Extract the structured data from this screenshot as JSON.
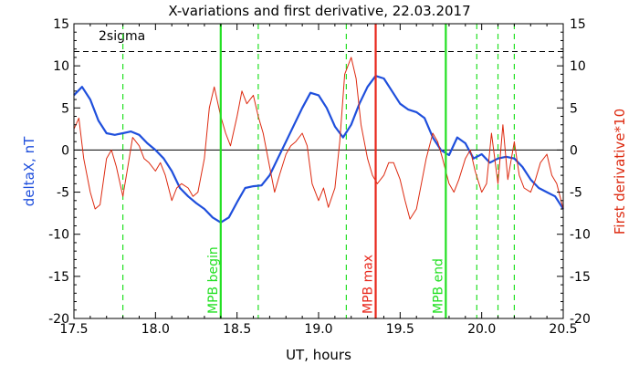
{
  "chart_data": {
    "type": "line",
    "title": "X-variations and first derivative, 22.03.2017",
    "xlabel": "UT, hours",
    "ylabel_left": "deltaX, nT",
    "ylabel_right": "First derivative*10",
    "xlim": [
      17.5,
      20.5
    ],
    "ylim": [
      -20,
      15
    ],
    "x_ticks": [
      "17.5",
      "18.0",
      "18.5",
      "19.0",
      "19.5",
      "20.0",
      "20.5"
    ],
    "x_tick_values": [
      17.5,
      18.0,
      18.5,
      19.0,
      19.5,
      20.0,
      20.5
    ],
    "y_ticks": [
      "-20",
      "-15",
      "-10",
      "-5",
      "0",
      "5",
      "10",
      "15"
    ],
    "y_tick_values": [
      -20,
      -15,
      -10,
      -5,
      0,
      5,
      10,
      15
    ],
    "colors": {
      "deltaX": "#1f4fdc",
      "derivative": "#dd2a10",
      "marker_green": "#22e022",
      "marker_red": "#e8281c",
      "axis": "#000000"
    },
    "sigma": {
      "label": "2sigma",
      "value": 11.7
    },
    "zero_line": 0,
    "markers": [
      {
        "x": 18.4,
        "label": "MPB begin",
        "color": "#22e022",
        "style": "solid"
      },
      {
        "x": 19.35,
        "label": "MPB max",
        "color": "#e8281c",
        "style": "solid"
      },
      {
        "x": 19.78,
        "label": "MPB end",
        "color": "#22e022",
        "style": "solid"
      }
    ],
    "dashed_markers": [
      17.8,
      18.63,
      19.17,
      19.97,
      20.1,
      20.2
    ],
    "series": [
      {
        "key": "deltaX",
        "name": "deltaX, nT",
        "x": [
          17.5,
          17.55,
          17.6,
          17.65,
          17.7,
          17.75,
          17.8,
          17.85,
          17.9,
          17.95,
          18.0,
          18.05,
          18.1,
          18.15,
          18.2,
          18.25,
          18.3,
          18.35,
          18.4,
          18.45,
          18.5,
          18.55,
          18.6,
          18.65,
          18.7,
          18.75,
          18.8,
          18.85,
          18.9,
          18.95,
          19.0,
          19.05,
          19.1,
          19.15,
          19.2,
          19.25,
          19.3,
          19.35,
          19.4,
          19.45,
          19.5,
          19.55,
          19.6,
          19.65,
          19.7,
          19.75,
          19.8,
          19.85,
          19.9,
          19.95,
          20.0,
          20.05,
          20.1,
          20.15,
          20.2,
          20.25,
          20.3,
          20.35,
          20.4,
          20.45,
          20.5
        ],
        "y": [
          6.5,
          7.5,
          6.0,
          3.5,
          2.0,
          1.8,
          2.0,
          2.2,
          1.8,
          0.8,
          0.0,
          -1.0,
          -2.5,
          -4.5,
          -5.5,
          -6.3,
          -7.0,
          -8.0,
          -8.6,
          -8.0,
          -6.2,
          -4.5,
          -4.3,
          -4.2,
          -3.0,
          -1.0,
          1.0,
          3.0,
          5.0,
          6.8,
          6.5,
          5.0,
          2.8,
          1.5,
          3.0,
          5.5,
          7.5,
          8.8,
          8.5,
          7.0,
          5.5,
          4.8,
          4.5,
          3.8,
          1.5,
          0.0,
          -0.6,
          1.5,
          0.8,
          -1.0,
          -0.5,
          -1.5,
          -1.0,
          -0.8,
          -1.0,
          -2.0,
          -3.5,
          -4.5,
          -5.0,
          -5.5,
          -7.0
        ]
      },
      {
        "key": "derivative",
        "name": "First derivative*10",
        "x": [
          17.5,
          17.53,
          17.56,
          17.6,
          17.63,
          17.66,
          17.7,
          17.73,
          17.76,
          17.8,
          17.83,
          17.86,
          17.9,
          17.93,
          17.96,
          18.0,
          18.03,
          18.06,
          18.1,
          18.13,
          18.16,
          18.2,
          18.23,
          18.26,
          18.3,
          18.33,
          18.36,
          18.4,
          18.43,
          18.46,
          18.5,
          18.53,
          18.56,
          18.6,
          18.63,
          18.66,
          18.7,
          18.73,
          18.76,
          18.8,
          18.83,
          18.86,
          18.9,
          18.93,
          18.96,
          19.0,
          19.03,
          19.06,
          19.1,
          19.13,
          19.16,
          19.2,
          19.23,
          19.26,
          19.3,
          19.33,
          19.36,
          19.4,
          19.43,
          19.46,
          19.5,
          19.53,
          19.56,
          19.6,
          19.63,
          19.66,
          19.7,
          19.73,
          19.76,
          19.8,
          19.83,
          19.86,
          19.9,
          19.93,
          19.96,
          20.0,
          20.03,
          20.06,
          20.1,
          20.13,
          20.16,
          20.2,
          20.23,
          20.26,
          20.3,
          20.33,
          20.36,
          20.4,
          20.43,
          20.46,
          20.5
        ],
        "y": [
          2.5,
          3.8,
          -1.0,
          -5.0,
          -7.0,
          -6.5,
          -1.0,
          0.0,
          -2.0,
          -5.5,
          -2.0,
          1.5,
          0.5,
          -1.0,
          -1.5,
          -2.5,
          -1.5,
          -3.0,
          -6.0,
          -4.5,
          -4.0,
          -4.5,
          -5.5,
          -5.0,
          -1.0,
          5.0,
          7.5,
          4.0,
          2.0,
          0.5,
          4.0,
          7.0,
          5.5,
          6.5,
          4.0,
          2.0,
          -2.0,
          -5.0,
          -3.0,
          -0.5,
          0.5,
          1.0,
          2.0,
          0.5,
          -4.0,
          -6.0,
          -4.5,
          -6.8,
          -4.5,
          1.0,
          9.0,
          11.0,
          8.5,
          3.0,
          -1.0,
          -3.0,
          -4.0,
          -3.0,
          -1.5,
          -1.5,
          -3.5,
          -6.0,
          -8.2,
          -7.0,
          -4.0,
          -1.0,
          2.0,
          1.0,
          -1.0,
          -4.0,
          -5.0,
          -3.5,
          -1.0,
          0.0,
          -2.5,
          -5.0,
          -4.0,
          2.0,
          -4.0,
          3.0,
          -3.5,
          1.0,
          -3.0,
          -4.5,
          -5.0,
          -3.5,
          -1.5,
          -0.5,
          -3.0,
          -4.0,
          -7.0
        ]
      }
    ]
  }
}
